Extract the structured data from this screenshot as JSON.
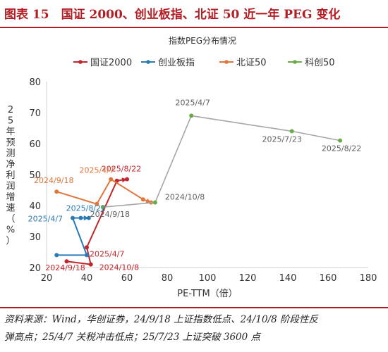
{
  "figure": {
    "title": "图表 15　国证 2000、创业板指、北证 50 近一年 PEG 变化",
    "source_line1": "资料来源：Wind，华创证券，24/9/18 上证指数低点、24/10/8 阶段性反",
    "source_line2": "弹高点；25/4/7 关税冲击低点；25/7/23 上证突破 3600 点"
  },
  "colors": {
    "rule": "#b21e24",
    "series": [
      "#c0262c",
      "#2a7ab5",
      "#e0763a",
      "#6aab45"
    ],
    "connector": "#a6a6a6",
    "label": "#5f5f5f",
    "axis": "#d0d0d0"
  },
  "chart_data": {
    "type": "line",
    "title": "指数PEG分布情况",
    "xlabel": "PE-TTM（倍）",
    "ylabel": "25年预测净利润增速（%）",
    "xlim": [
      20,
      180
    ],
    "ylim": [
      20,
      80
    ],
    "xticks": [
      "20",
      "40",
      "60",
      "80",
      "100",
      "120",
      "140",
      "160",
      "180"
    ],
    "yticks": [
      "20",
      "30",
      "40",
      "50",
      "60",
      "70",
      "80"
    ],
    "grid": false,
    "legend": "top",
    "series": [
      {
        "name": "国证2000",
        "points": [
          [
            30,
            22
          ],
          [
            42,
            21
          ],
          [
            40,
            26.5
          ],
          [
            55,
            48
          ],
          [
            60,
            48.5
          ]
        ],
        "labels": [
          {
            "point": 0,
            "text": "2024/9/18"
          },
          {
            "point": 1,
            "text": "2024/10/8"
          },
          {
            "point": 2,
            "text": "2025/4/7"
          },
          {
            "point": 4,
            "text": "2025/8/22"
          }
        ]
      },
      {
        "name": "创业板指",
        "points": [
          [
            25,
            24
          ],
          [
            40,
            24
          ],
          [
            33,
            36
          ],
          [
            37,
            36
          ],
          [
            41,
            36
          ]
        ],
        "labels": [
          {
            "point": 2,
            "text": "2025/4/7"
          },
          {
            "point": 4,
            "text": "2025/8/22"
          }
        ]
      },
      {
        "name": "北证50",
        "points": [
          [
            25,
            44.5
          ],
          [
            45,
            40.5
          ],
          [
            52,
            48.5
          ],
          [
            68,
            42
          ],
          [
            72,
            41
          ]
        ],
        "labels": [
          {
            "point": 0,
            "text": "2024/9/18"
          },
          {
            "point": 2,
            "text": "2025/4/7"
          }
        ]
      },
      {
        "name": "科创50",
        "points": [
          [
            48,
            39.5
          ],
          [
            74,
            41
          ],
          [
            92,
            69
          ],
          [
            142,
            64
          ],
          [
            166,
            61
          ]
        ],
        "labels": [
          {
            "point": 0,
            "text": "2024/9/18"
          },
          {
            "point": 1,
            "text": "2024/10/8"
          },
          {
            "point": 2,
            "text": "2025/4/7"
          },
          {
            "point": 3,
            "text": "2025/7/23"
          },
          {
            "point": 4,
            "text": "2025/8/22"
          }
        ]
      }
    ]
  }
}
